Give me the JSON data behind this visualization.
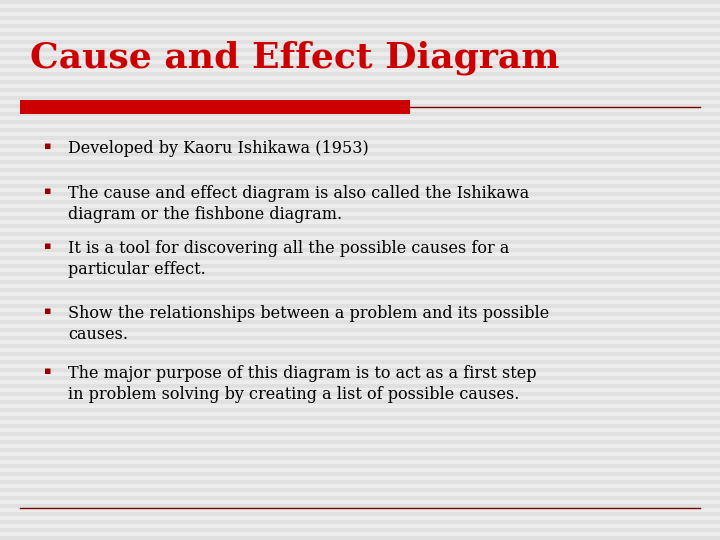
{
  "title": "Cause and Effect Diagram",
  "title_color": "#cc0000",
  "title_fontsize": 26,
  "title_font": "serif",
  "background_color": "#f0f0f0",
  "stripe_color_light": "#e8e8e8",
  "stripe_color_dark": "#d8d8d8",
  "accent_bar_color": "#cc0000",
  "accent_line_color": "#7a0000",
  "bullet_color": "#990000",
  "text_color": "#000000",
  "bullet_points": [
    "Developed by Kaoru Ishikawa (1953)",
    "The cause and effect diagram is also called the Ishikawa\ndiagram or the fishbone diagram.",
    "It is a tool for discovering all the possible causes for a\nparticular effect.",
    "Show the relationships between a problem and its possible\ncauses.",
    "The major purpose of this diagram is to act as a first step\nin problem solving by creating a list of possible causes."
  ],
  "text_fontsize": 11.5,
  "text_font": "serif"
}
